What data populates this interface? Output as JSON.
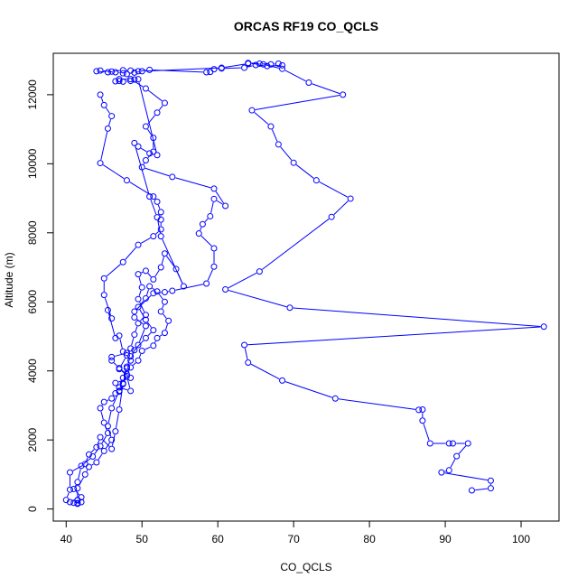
{
  "chart_data": {
    "type": "line",
    "title": "ORCAS RF19 CO_QCLS",
    "xlabel": "CO_QCLS",
    "ylabel": "Altitude (m)",
    "xlim": [
      38.3,
      105
    ],
    "ylim": [
      -350,
      13200
    ],
    "x_ticks": [
      40,
      50,
      60,
      70,
      80,
      90,
      100
    ],
    "y_ticks": [
      0,
      2000,
      4000,
      6000,
      8000,
      10000,
      12000
    ],
    "grid": false,
    "legend": "none",
    "marker": "open-circle",
    "color": "#0000ff",
    "series": [
      {
        "points": [
          [
            64.0,
            12920
          ],
          [
            65.5,
            12900
          ],
          [
            67.0,
            12880
          ],
          [
            68.0,
            12900
          ],
          [
            68.5,
            12850
          ],
          [
            66.5,
            12830
          ],
          [
            65.0,
            12860
          ],
          [
            63.5,
            12780
          ],
          [
            60.5,
            12760
          ],
          [
            59.5,
            12740
          ],
          [
            59.0,
            12660
          ],
          [
            58.5,
            12650
          ],
          [
            51.0,
            12720
          ],
          [
            49.5,
            12680
          ],
          [
            48.5,
            12700
          ],
          [
            47.5,
            12710
          ],
          [
            46.0,
            12670
          ],
          [
            45.5,
            12650
          ],
          [
            44.0,
            12680
          ],
          [
            44.5,
            12700
          ],
          [
            46.5,
            12650
          ],
          [
            47.5,
            12620
          ],
          [
            48.0,
            12600
          ],
          [
            49.0,
            12640
          ],
          [
            50.0,
            12680
          ],
          [
            60.5,
            12780
          ],
          [
            64.0,
            12900
          ],
          [
            66.0,
            12880
          ],
          [
            68.5,
            12750
          ],
          [
            72.0,
            12350
          ],
          [
            76.5,
            12000
          ],
          [
            64.5,
            11550
          ],
          [
            67.0,
            11080
          ],
          [
            68.0,
            10560
          ],
          [
            70.0,
            10030
          ],
          [
            73.0,
            9520
          ],
          [
            77.5,
            8990
          ],
          [
            75.0,
            8460
          ],
          [
            65.5,
            6880
          ],
          [
            61.0,
            6360
          ],
          [
            69.5,
            5830
          ],
          [
            103.0,
            5280
          ],
          [
            63.5,
            4750
          ],
          [
            64.0,
            4240
          ],
          [
            68.5,
            3720
          ],
          [
            75.5,
            3200
          ],
          [
            86.5,
            2870
          ],
          [
            87.0,
            2880
          ],
          [
            87.0,
            2560
          ],
          [
            88.0,
            1900
          ],
          [
            90.5,
            1900
          ],
          [
            91.0,
            1900
          ],
          [
            93.0,
            1900
          ],
          [
            91.5,
            1530
          ],
          [
            90.5,
            1120
          ],
          [
            89.5,
            1060
          ],
          [
            96.0,
            820
          ],
          [
            96.0,
            600
          ],
          [
            93.5,
            540
          ]
        ]
      },
      {
        "points": [
          [
            44.5,
            12000
          ],
          [
            45.0,
            11700
          ],
          [
            46.0,
            11380
          ],
          [
            45.5,
            11020
          ],
          [
            44.5,
            10020
          ],
          [
            48.0,
            9520
          ],
          [
            51.5,
            9050
          ],
          [
            52.0,
            8900
          ],
          [
            52.5,
            8600
          ],
          [
            52.5,
            8380
          ],
          [
            52.5,
            8100
          ],
          [
            51.5,
            7900
          ],
          [
            49.5,
            7650
          ],
          [
            47.5,
            7150
          ],
          [
            45.0,
            6680
          ],
          [
            45.0,
            6200
          ],
          [
            46.0,
            5520
          ],
          [
            45.5,
            5760
          ],
          [
            46.5,
            4950
          ],
          [
            47.0,
            5020
          ],
          [
            47.5,
            4560
          ],
          [
            48.0,
            4520
          ],
          [
            46.0,
            4400
          ],
          [
            46.0,
            4300
          ],
          [
            47.0,
            4080
          ],
          [
            48.0,
            3900
          ],
          [
            47.5,
            3620
          ],
          [
            47.0,
            3400
          ],
          [
            46.5,
            3350
          ],
          [
            46.0,
            3200
          ],
          [
            45.0,
            3100
          ],
          [
            44.5,
            2920
          ],
          [
            45.0,
            2500
          ],
          [
            45.5,
            2200
          ],
          [
            44.5,
            1820
          ],
          [
            43.5,
            1520
          ],
          [
            42.0,
            1250
          ],
          [
            41.5,
            780
          ],
          [
            41.0,
            580
          ],
          [
            42.0,
            340
          ],
          [
            41.5,
            170
          ]
        ]
      },
      {
        "points": [
          [
            49.0,
            12440
          ],
          [
            48.5,
            12400
          ],
          [
            47.5,
            12380
          ],
          [
            47.0,
            12400
          ],
          [
            46.5,
            12390
          ],
          [
            47.0,
            12450
          ],
          [
            48.5,
            12450
          ],
          [
            50.5,
            12180
          ],
          [
            53.0,
            11760
          ],
          [
            52.0,
            11480
          ],
          [
            50.5,
            11080
          ],
          [
            51.5,
            10750
          ],
          [
            51.5,
            10350
          ],
          [
            50.5,
            10100
          ],
          [
            50.0,
            9900
          ],
          [
            54.0,
            9620
          ],
          [
            59.5,
            9280
          ],
          [
            61.0,
            8780
          ],
          [
            59.5,
            8980
          ],
          [
            59.0,
            8480
          ],
          [
            58.0,
            8250
          ],
          [
            57.5,
            7980
          ],
          [
            59.5,
            7550
          ],
          [
            59.5,
            7020
          ],
          [
            58.5,
            6530
          ],
          [
            54.0,
            6320
          ],
          [
            53.0,
            6280
          ],
          [
            51.5,
            6250
          ],
          [
            49.0,
            5720
          ],
          [
            49.0,
            5550
          ],
          [
            50.5,
            5300
          ],
          [
            49.5,
            4750
          ],
          [
            48.5,
            4420
          ],
          [
            48.0,
            4120
          ],
          [
            47.5,
            3800
          ],
          [
            47.0,
            3420
          ],
          [
            46.0,
            2920
          ],
          [
            45.5,
            2400
          ],
          [
            46.0,
            2000
          ],
          [
            45.0,
            1680
          ],
          [
            44.0,
            1350
          ],
          [
            43.0,
            1220
          ],
          [
            42.5,
            1000
          ],
          [
            41.5,
            600
          ],
          [
            41.5,
            250
          ],
          [
            42.0,
            200
          ],
          [
            41.5,
            150
          ],
          [
            41.0,
            180
          ]
        ]
      },
      {
        "points": [
          [
            41.5,
            260
          ],
          [
            40.5,
            200
          ],
          [
            40.0,
            260
          ],
          [
            40.5,
            560
          ],
          [
            40.5,
            1060
          ],
          [
            42.5,
            1300
          ],
          [
            43.0,
            1580
          ],
          [
            44.0,
            1790
          ],
          [
            44.5,
            2080
          ],
          [
            46.0,
            1740
          ],
          [
            46.5,
            2250
          ],
          [
            47.0,
            2880
          ],
          [
            47.5,
            3640
          ],
          [
            48.0,
            4080
          ],
          [
            48.5,
            4300
          ],
          [
            49.0,
            4600
          ],
          [
            50.5,
            4950
          ],
          [
            51.5,
            5180
          ],
          [
            50.5,
            5480
          ],
          [
            49.5,
            5850
          ],
          [
            50.5,
            6100
          ],
          [
            51.0,
            6450
          ],
          [
            52.0,
            6300
          ],
          [
            53.0,
            6000
          ],
          [
            52.5,
            5720
          ],
          [
            53.5,
            5450
          ],
          [
            53.0,
            5100
          ],
          [
            52.0,
            4950
          ],
          [
            51.5,
            4730
          ],
          [
            50.0,
            4580
          ],
          [
            49.5,
            4300
          ],
          [
            48.5,
            4100
          ],
          [
            48.0,
            3850
          ],
          [
            48.5,
            3420
          ],
          [
            47.0,
            3520
          ],
          [
            46.5,
            3650
          ],
          [
            48.5,
            3800
          ],
          [
            47.0,
            4050
          ],
          [
            48.0,
            4450
          ],
          [
            48.5,
            4650
          ],
          [
            49.0,
            5050
          ],
          [
            49.5,
            5380
          ],
          [
            50.5,
            5620
          ],
          [
            49.5,
            6080
          ],
          [
            50.0,
            6420
          ],
          [
            49.5,
            6800
          ],
          [
            50.5,
            6900
          ],
          [
            51.5,
            6650
          ],
          [
            52.5,
            7000
          ],
          [
            53.0,
            7400
          ],
          [
            54.5,
            6950
          ],
          [
            55.5,
            6450
          ],
          [
            52.5,
            7900
          ],
          [
            52.0,
            8450
          ],
          [
            51.0,
            9050
          ],
          [
            49.0,
            10600
          ],
          [
            49.5,
            10500
          ],
          [
            51.0,
            10300
          ],
          [
            52.0,
            10250
          ],
          [
            49.5,
            12450
          ]
        ]
      }
    ]
  }
}
